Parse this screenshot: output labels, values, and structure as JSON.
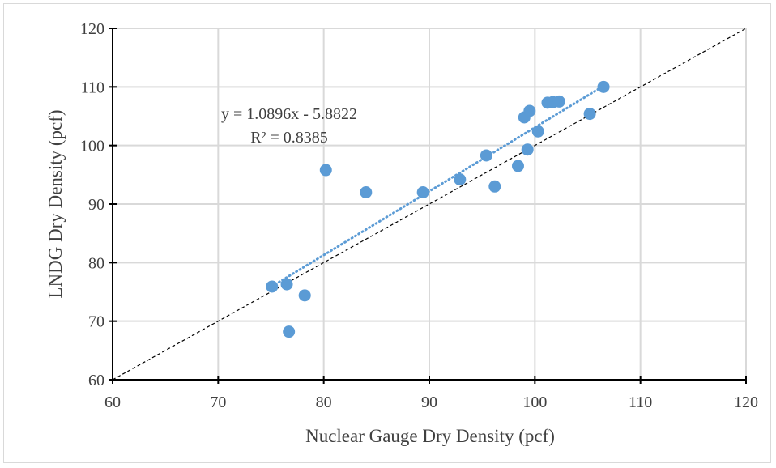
{
  "chart_data": {
    "type": "scatter",
    "xlabel": "Nuclear Gauge Dry Density (pcf)",
    "ylabel": "LNDG Dry Density (pcf)",
    "xlim": [
      60,
      120
    ],
    "ylim": [
      60,
      120
    ],
    "xticks": [
      60,
      70,
      80,
      90,
      100,
      110,
      120
    ],
    "yticks": [
      60,
      70,
      80,
      90,
      100,
      110,
      120
    ],
    "grid": true,
    "legend": "none",
    "series": [
      {
        "color": "#5b9bd5",
        "points": [
          {
            "x": 75.1,
            "y": 75.9
          },
          {
            "x": 76.5,
            "y": 76.3
          },
          {
            "x": 76.7,
            "y": 68.2
          },
          {
            "x": 78.2,
            "y": 74.4
          },
          {
            "x": 80.2,
            "y": 95.8
          },
          {
            "x": 84.0,
            "y": 92.0
          },
          {
            "x": 89.4,
            "y": 92.0
          },
          {
            "x": 92.9,
            "y": 94.2
          },
          {
            "x": 95.4,
            "y": 98.3
          },
          {
            "x": 96.2,
            "y": 93.0
          },
          {
            "x": 98.4,
            "y": 96.5
          },
          {
            "x": 99.0,
            "y": 104.8
          },
          {
            "x": 99.3,
            "y": 99.3
          },
          {
            "x": 99.5,
            "y": 105.9
          },
          {
            "x": 100.3,
            "y": 102.4
          },
          {
            "x": 101.2,
            "y": 107.3
          },
          {
            "x": 101.7,
            "y": 107.4
          },
          {
            "x": 102.3,
            "y": 107.5
          },
          {
            "x": 105.2,
            "y": 105.4
          },
          {
            "x": 106.5,
            "y": 110.0
          }
        ]
      }
    ],
    "trendline": {
      "type": "linear",
      "slope": 1.0896,
      "intercept": -5.8822,
      "x_range": [
        75.1,
        106.5
      ],
      "color": "#5b9bd5",
      "style": "dotted",
      "equation_label": "y = 1.0896x - 5.8822",
      "r2_label": "R² = 0.8385"
    },
    "reference_line": {
      "type": "1:1",
      "from": [
        60,
        60
      ],
      "to": [
        120,
        120
      ],
      "color": "#000000",
      "style": "dashed"
    }
  }
}
